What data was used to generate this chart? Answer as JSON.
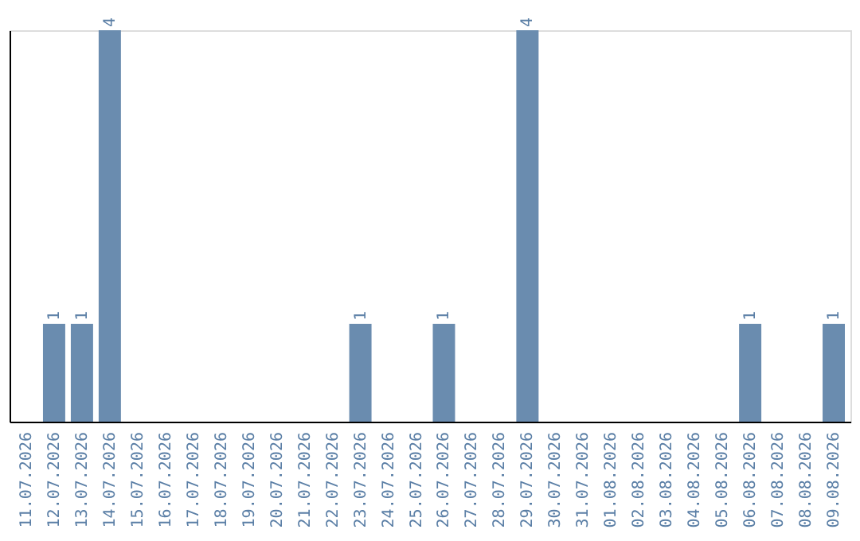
{
  "chart_data": {
    "type": "bar",
    "categories": [
      "11.07.2026",
      "12.07.2026",
      "13.07.2026",
      "14.07.2026",
      "15.07.2026",
      "16.07.2026",
      "17.07.2026",
      "18.07.2026",
      "19.07.2026",
      "20.07.2026",
      "21.07.2026",
      "22.07.2026",
      "23.07.2026",
      "24.07.2026",
      "25.07.2026",
      "26.07.2026",
      "27.07.2026",
      "28.07.2026",
      "29.07.2026",
      "30.07.2026",
      "31.07.2026",
      "01.08.2026",
      "02.08.2026",
      "03.08.2026",
      "04.08.2026",
      "05.08.2026",
      "06.08.2026",
      "07.08.2026",
      "08.08.2026",
      "09.08.2026"
    ],
    "values": [
      0,
      1,
      1,
      4,
      0,
      0,
      0,
      0,
      0,
      0,
      0,
      0,
      1,
      0,
      0,
      1,
      0,
      0,
      4,
      0,
      0,
      0,
      0,
      0,
      0,
      0,
      1,
      0,
      0,
      1
    ],
    "value_labels": [
      null,
      "1",
      "1",
      "4",
      null,
      null,
      null,
      null,
      null,
      null,
      null,
      null,
      "1",
      null,
      null,
      "1",
      null,
      null,
      "4",
      null,
      null,
      null,
      null,
      null,
      null,
      null,
      "1",
      null,
      null,
      "1"
    ],
    "color": "#6a8caf",
    "ylim": [
      0,
      4
    ],
    "tick_labels": "x",
    "grid": false
  }
}
